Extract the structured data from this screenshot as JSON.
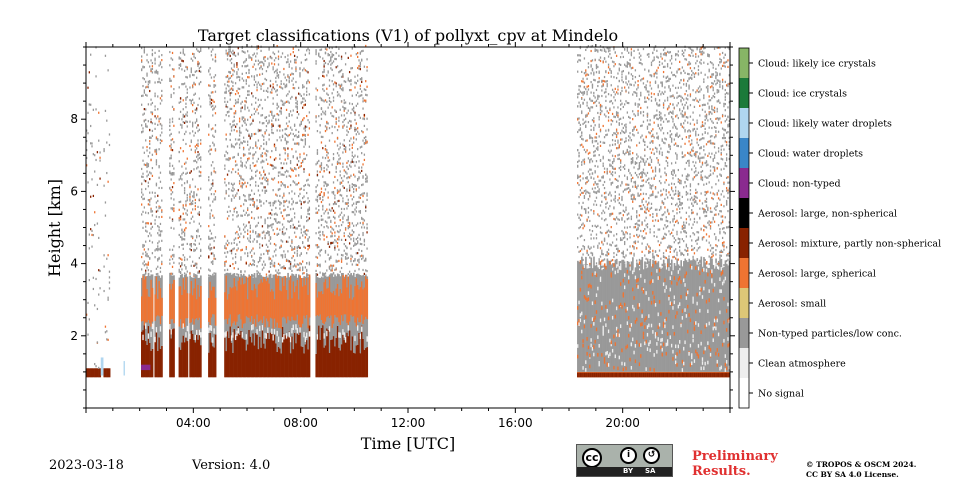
{
  "chart_data": {
    "type": "heatmap",
    "title": "Target classifications (V1) of pollyxt_cpv at Mindelo",
    "xlabel": "Time [UTC]",
    "ylabel": "Height [km]",
    "xlim": [
      0,
      24
    ],
    "ylim": [
      0,
      10
    ],
    "x_ticks": [
      "04:00",
      "08:00",
      "12:00",
      "16:00",
      "20:00"
    ],
    "y_ticks": [
      "2",
      "4",
      "6",
      "8"
    ],
    "legend": [
      {
        "label": "Cloud: likely ice crystals",
        "color": "#87b566"
      },
      {
        "label": "Cloud: ice crystals",
        "color": "#1b7a3a"
      },
      {
        "label": "Cloud: likely water droplets",
        "color": "#b0d6f0"
      },
      {
        "label": "Cloud: water droplets",
        "color": "#3a86c8"
      },
      {
        "label": "Cloud: non-typed",
        "color": "#8a2a8f"
      },
      {
        "label": "Aerosol: large, non-spherical",
        "color": "#000000"
      },
      {
        "label": "Aerosol: mixture, partly non-spherical",
        "color": "#882200"
      },
      {
        "label": "Aerosol: large, spherical",
        "color": "#ef7432"
      },
      {
        "label": "Aerosol: small",
        "color": "#ddc777"
      },
      {
        "label": "Non-typed particles/low conc.",
        "color": "#999999"
      },
      {
        "label": "Clean atmosphere",
        "color": "#eeeeee"
      },
      {
        "label": "No signal",
        "color": "#ffffff"
      }
    ],
    "observation_periods_hours": [
      [
        0.0,
        10.5
      ],
      [
        18.3,
        24.0
      ]
    ]
  },
  "footer": {
    "date": "2023-03-18",
    "version": "Version: 4.0",
    "preliminary": "Preliminary\nResults.",
    "copyright_line1": "© TROPOS & OSCM 2024.",
    "copyright_line2": "CC BY SA 4.0 License."
  },
  "badge": {
    "cc": "cc",
    "by": "BY",
    "sa": "SA"
  },
  "colors": {
    "preliminary": "#e03030"
  }
}
